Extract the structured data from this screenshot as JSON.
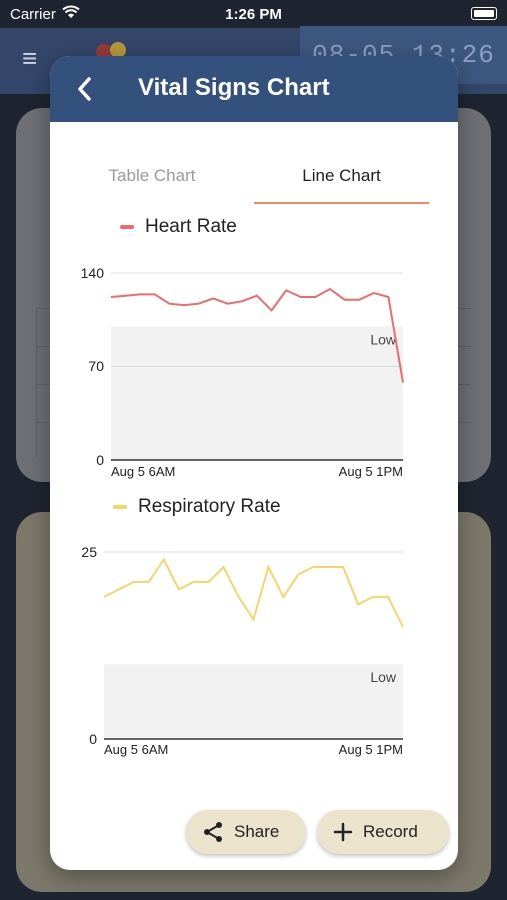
{
  "status_bar": {
    "carrier": "Carrier",
    "time": "1:26 PM"
  },
  "background": {
    "clock": "08-05 13:26"
  },
  "modal": {
    "title": "Vital Signs Chart",
    "tabs": [
      {
        "label": "Table Chart",
        "active": false
      },
      {
        "label": "Line Chart",
        "active": true
      }
    ]
  },
  "charts": [
    {
      "legend": "Heart Rate",
      "color": "#ee6b6b",
      "y_ticks": [
        "140",
        "70",
        "0"
      ],
      "band_label": "Low",
      "x_labels": [
        "Aug 5 6AM",
        "Aug 5 1PM"
      ]
    },
    {
      "legend": "Respiratory Rate",
      "color": "#f7d46a",
      "y_ticks": [
        "25",
        "0"
      ],
      "band_label": "Low",
      "x_labels": [
        "Aug 5 6AM",
        "Aug 5 1PM"
      ]
    }
  ],
  "actions": {
    "share_label": "Share",
    "record_label": "Record"
  },
  "chart_data": [
    {
      "type": "line",
      "series": [
        {
          "name": "Heart Rate",
          "values": [
            122,
            123,
            124,
            124,
            117,
            116,
            117,
            121,
            117,
            119,
            123,
            112,
            127,
            122,
            122,
            128,
            120,
            120,
            125,
            122,
            58
          ]
        }
      ],
      "x_labels": [
        "Aug 5 6AM",
        "Aug 5 1PM"
      ],
      "ylim": [
        0,
        140
      ],
      "y_ticks": [
        0,
        70,
        140
      ],
      "low_band": [
        0,
        100
      ]
    },
    {
      "type": "line",
      "series": [
        {
          "name": "Respiratory Rate",
          "values": [
            19,
            20,
            21,
            21,
            24,
            20,
            21,
            21,
            23,
            19,
            16,
            23,
            19,
            22,
            23,
            23,
            23,
            18,
            19,
            19,
            15
          ]
        }
      ],
      "x_labels": [
        "Aug 5 6AM",
        "Aug 5 1PM"
      ],
      "ylim": [
        0,
        25
      ],
      "y_ticks": [
        0,
        25
      ],
      "low_band": [
        0,
        10
      ]
    }
  ]
}
